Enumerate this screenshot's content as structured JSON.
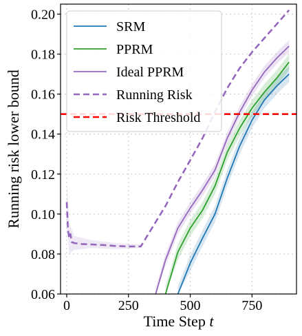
{
  "chart_data": {
    "type": "line",
    "title": "",
    "xlabel": "Time Step",
    "xlabel_var": "t",
    "ylabel": "Running risk lower bound",
    "xlim": [
      -25,
      930
    ],
    "ylim": [
      0.06,
      0.205
    ],
    "xticks": [
      0,
      250,
      500,
      750
    ],
    "xtick_labels": [
      "0",
      "250",
      "500",
      "750"
    ],
    "yticks": [
      0.06,
      0.08,
      0.1,
      0.12,
      0.14,
      0.16,
      0.18,
      0.2
    ],
    "ytick_labels": [
      "0.06",
      "0.08",
      "0.10",
      "0.12",
      "0.14",
      "0.16",
      "0.18",
      "0.20"
    ],
    "grid": true,
    "legend_position": "top-left",
    "series": [
      {
        "name": "SRM",
        "color": "#1f77b4",
        "style": "solid",
        "band": 0.004,
        "points": [
          [
            450,
            0.06
          ],
          [
            500,
            0.0755
          ],
          [
            550,
            0.088
          ],
          [
            600,
            0.1
          ],
          [
            650,
            0.118
          ],
          [
            700,
            0.134
          ],
          [
            750,
            0.147
          ],
          [
            800,
            0.157
          ],
          [
            850,
            0.164
          ],
          [
            900,
            0.17
          ]
        ]
      },
      {
        "name": "PPRM",
        "color": "#2ca02c",
        "style": "solid",
        "band": 0.004,
        "points": [
          [
            400,
            0.06
          ],
          [
            450,
            0.081
          ],
          [
            500,
            0.093
          ],
          [
            550,
            0.102
          ],
          [
            600,
            0.114
          ],
          [
            650,
            0.131
          ],
          [
            700,
            0.143
          ],
          [
            750,
            0.153
          ],
          [
            800,
            0.161
          ],
          [
            850,
            0.168
          ],
          [
            900,
            0.176
          ]
        ]
      },
      {
        "name": "Ideal PPRM",
        "color": "#9467bd",
        "style": "solid",
        "band": 0.003,
        "points": [
          [
            360,
            0.06
          ],
          [
            400,
            0.077
          ],
          [
            450,
            0.093
          ],
          [
            500,
            0.103
          ],
          [
            550,
            0.112
          ],
          [
            600,
            0.122
          ],
          [
            650,
            0.138
          ],
          [
            700,
            0.151
          ],
          [
            750,
            0.162
          ],
          [
            800,
            0.171
          ],
          [
            850,
            0.178
          ],
          [
            900,
            0.184
          ]
        ]
      },
      {
        "name": "Running Risk",
        "color": "#9467bd",
        "style": "dashed",
        "band": 0.0,
        "points": [
          [
            0,
            0.106
          ],
          [
            5,
            0.092
          ],
          [
            10,
            0.088
          ],
          [
            15,
            0.09
          ],
          [
            20,
            0.086
          ],
          [
            30,
            0.0855
          ],
          [
            60,
            0.085
          ],
          [
            100,
            0.0848
          ],
          [
            150,
            0.0845
          ],
          [
            200,
            0.084
          ],
          [
            250,
            0.0838
          ],
          [
            300,
            0.0838
          ],
          [
            350,
            0.094
          ],
          [
            400,
            0.104
          ],
          [
            450,
            0.116
          ],
          [
            500,
            0.127
          ],
          [
            550,
            0.138
          ],
          [
            600,
            0.151
          ],
          [
            650,
            0.163
          ],
          [
            700,
            0.173
          ],
          [
            750,
            0.181
          ],
          [
            800,
            0.188
          ],
          [
            850,
            0.195
          ],
          [
            900,
            0.202
          ]
        ]
      },
      {
        "name": "Risk Threshold",
        "color": "#ff0000",
        "style": "dashed",
        "band": 0.0,
        "points": [
          [
            -25,
            0.15
          ],
          [
            930,
            0.15
          ]
        ]
      }
    ],
    "running_risk_band": [
      [
        0,
        0.096,
        0.116
      ],
      [
        10,
        0.08,
        0.096
      ],
      [
        30,
        0.082,
        0.089
      ],
      [
        100,
        0.083,
        0.087
      ],
      [
        200,
        0.0825,
        0.0855
      ],
      [
        300,
        0.083,
        0.0848
      ]
    ]
  }
}
